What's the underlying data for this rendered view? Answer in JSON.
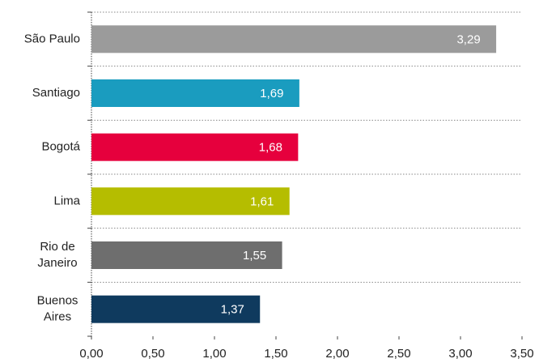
{
  "chart_data": {
    "type": "bar",
    "orientation": "horizontal",
    "categories": [
      "São Paulo",
      "Santiago",
      "Bogotá",
      "Lima",
      "Rio de Janeiro",
      "Buenos Aires"
    ],
    "values": [
      3.29,
      1.69,
      1.68,
      1.61,
      1.55,
      1.37
    ],
    "value_labels": [
      "3,29",
      "1,69",
      "1,68",
      "1,61",
      "1,55",
      "1,37"
    ],
    "colors": [
      "#9b9b9b",
      "#1a9cbf",
      "#e6003d",
      "#b5bd00",
      "#6e6e6e",
      "#0f3a5e"
    ],
    "xlim": [
      0,
      3.5
    ],
    "xticks": [
      {
        "value": 0,
        "label": "0,00"
      },
      {
        "value": 0.5,
        "label": "0,50"
      },
      {
        "value": 1,
        "label": "1,00"
      },
      {
        "value": 1.5,
        "label": "1,50"
      },
      {
        "value": 2,
        "label": "2,00"
      },
      {
        "value": 2.5,
        "label": "2,50"
      },
      {
        "value": 3,
        "label": "3,00"
      },
      {
        "value": 3.5,
        "label": "3,50"
      }
    ]
  }
}
